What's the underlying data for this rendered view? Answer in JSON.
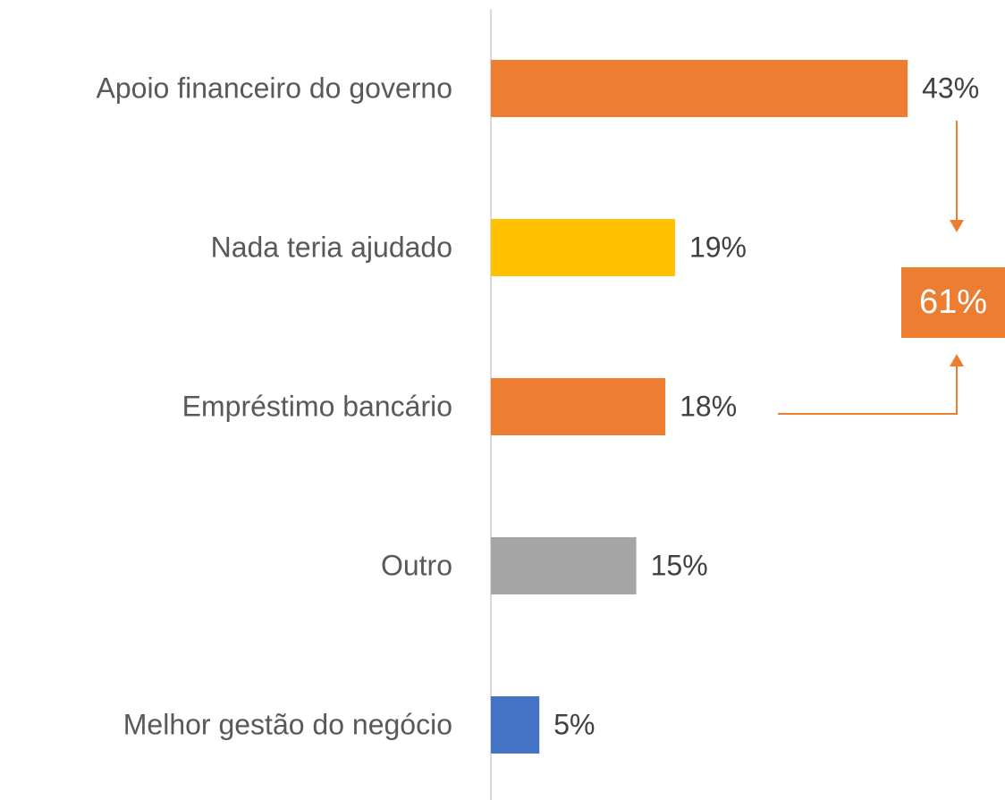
{
  "chart_data": {
    "type": "hbar",
    "categories": [
      "Apoio financeiro do governo",
      "Nada teria ajudado",
      "Empréstimo bancário",
      "Outro",
      "Melhor gestão do negócio"
    ],
    "values": [
      43,
      19,
      18,
      15,
      5
    ],
    "value_labels": [
      "43%",
      "19%",
      "18%",
      "15%",
      "5%"
    ],
    "colors": [
      "#ed7d31",
      "#ffc000",
      "#ed7d31",
      "#a5a5a5",
      "#4472c4"
    ],
    "xlim": [
      0,
      50
    ],
    "annotation": "61%",
    "annotation_color": "#ed7d31"
  }
}
